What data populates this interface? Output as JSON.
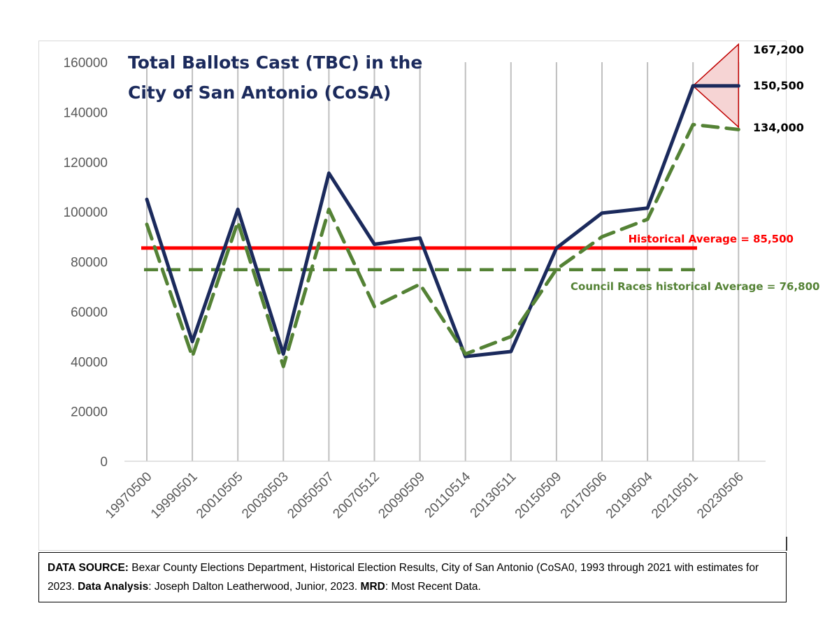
{
  "chart_data": {
    "type": "line",
    "title_line1": "Total Ballots Cast (TBC) in the",
    "title_line2": "City of San Antonio (CoSA)",
    "xlabel": "",
    "ylabel": "",
    "ylim": [
      0,
      160000
    ],
    "yticks": [
      0,
      20000,
      40000,
      60000,
      80000,
      100000,
      120000,
      140000,
      160000
    ],
    "categories": [
      "19970500",
      "19990501",
      "20010505",
      "20030503",
      "20050507",
      "20070512",
      "20090509",
      "20110514",
      "20130511",
      "20150509",
      "20170506",
      "20190504",
      "20210501",
      "20230506"
    ],
    "series": [
      {
        "values": [
          105000,
          48000,
          101000,
          43000,
          115500,
          87000,
          89500,
          42000,
          44000,
          85500,
          99500,
          101500,
          150500,
          150500
        ],
        "color": "#1b2a5c",
        "style": "solid"
      },
      {
        "values": [
          95000,
          42000,
          96000,
          38000,
          101000,
          62000,
          71000,
          43000,
          50000,
          77000,
          90000,
          97000,
          135000,
          133000
        ],
        "color": "#548235",
        "style": "dashed"
      }
    ],
    "reference_lines": [
      {
        "label": "Historical Average = 85,500",
        "value": 85500,
        "color": "#ff0000",
        "style": "solid"
      },
      {
        "label": "Council Races historical Average = 76,800",
        "value": 76800,
        "color": "#548235",
        "style": "dashed"
      }
    ],
    "forecast_range": {
      "high": 167200,
      "mid": 150500,
      "low": 134000,
      "high_label": "167,200",
      "mid_label": "150,500",
      "low_label": "134,000",
      "color": "#c00000",
      "fill": "#f4cccc"
    },
    "grid": "vertical",
    "legend": "none"
  },
  "footer": {
    "source_label": "DATA SOURCE:",
    "source_text": " Bexar County Elections Department, Historical Election Results, City of San Antonio (CoSA0, 1993 through 2021 with estimates for 2023.  ",
    "analysis_label": "Data Analysis",
    "analysis_text": ": Joseph Dalton Leatherwood, Junior, 2023.  ",
    "mrd_label": "MRD",
    "mrd_text": ": Most Recent Data."
  }
}
